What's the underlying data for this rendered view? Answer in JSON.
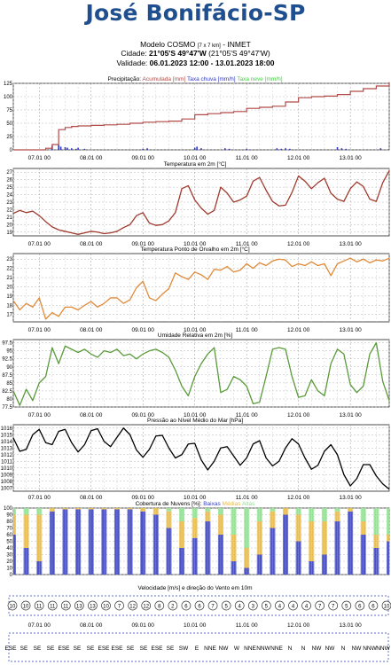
{
  "header": {
    "title": "José Bonifácio-SP",
    "model_label": "Modelo COSMO",
    "model_resolution": "[7 x 7 km]",
    "model_source": "- INMET",
    "city_label": "Cidade:",
    "city_coords": "21°05'S 49°47'W",
    "city_coords_alt": "(21°05'S 49°47'W)",
    "validity_label": "Validade:",
    "validity_range": "06.01.2023 12:00 - 13.01.2023 18:00"
  },
  "x_tick_labels": [
    "07.01 00",
    "08.01 00",
    "09.01 00",
    "10.01 00",
    "11.01 00",
    "12.01 00",
    "13.01 00"
  ],
  "colors": {
    "precip_line": "#b04a46",
    "rain_rate": "#2e37c8",
    "snow_rate": "#3fce3f",
    "temperature": "#a03a2e",
    "dewpoint": "#e08a38",
    "humidity": "#5a9a3a",
    "pressure": "#000000",
    "cloud_low": "#3840c0",
    "cloud_mid": "#e8b840",
    "cloud_high": "#8ce08c"
  },
  "chart_data": [
    {
      "type": "line",
      "title": "Precipitação:",
      "legend": [
        "Acumulada [mm]",
        "Taxa chuva [mm/h]",
        "Taxa neve [mm/h]"
      ],
      "x_hours": [
        0,
        12,
        15,
        18,
        21,
        24,
        27,
        30,
        36,
        42,
        48,
        54,
        60,
        66,
        72,
        78,
        84,
        90,
        96,
        102,
        108,
        114,
        120,
        126,
        132,
        138,
        144,
        150,
        156,
        162,
        168,
        174
      ],
      "series": [
        {
          "name": "Acumulada [mm]",
          "values": [
            0,
            0,
            3,
            10,
            38,
            42,
            44,
            45,
            46,
            47,
            48,
            50,
            52,
            53,
            54,
            58,
            66,
            68,
            70,
            72,
            78,
            80,
            82,
            90,
            98,
            100,
            101,
            104,
            110,
            115,
            120,
            127
          ]
        }
      ],
      "rain_rate_bars": [
        [
          18,
          8
        ],
        [
          21,
          9
        ],
        [
          22,
          6
        ],
        [
          24,
          5
        ],
        [
          25,
          4
        ],
        [
          27,
          3
        ],
        [
          29,
          2
        ],
        [
          30,
          4
        ],
        [
          33,
          2
        ],
        [
          60,
          2
        ],
        [
          62,
          3
        ],
        [
          84,
          4
        ],
        [
          85,
          6
        ],
        [
          87,
          3
        ],
        [
          98,
          3
        ],
        [
          100,
          2
        ],
        [
          108,
          2
        ],
        [
          122,
          3
        ],
        [
          124,
          2
        ],
        [
          126,
          3
        ],
        [
          128,
          2
        ],
        [
          150,
          5
        ],
        [
          152,
          3
        ],
        [
          154,
          2
        ],
        [
          170,
          3
        ]
      ],
      "ylim": [
        0,
        125
      ],
      "yticks": [
        0,
        25,
        50,
        75,
        100,
        125
      ]
    },
    {
      "type": "line",
      "title": "Temperatura em 2m [°C]",
      "x_hours": [
        0,
        3,
        6,
        9,
        12,
        15,
        18,
        21,
        24,
        27,
        30,
        33,
        36,
        39,
        42,
        45,
        48,
        51,
        54,
        57,
        60,
        63,
        66,
        69,
        72,
        75,
        78,
        81,
        84,
        87,
        90,
        93,
        96,
        99,
        102,
        105,
        108,
        111,
        114,
        117,
        120,
        123,
        126,
        129,
        132,
        135,
        138,
        141,
        144,
        147,
        150,
        153,
        156,
        159,
        162,
        165,
        168,
        171,
        174
      ],
      "series": [
        {
          "name": "Temperatura",
          "values": [
            21.5,
            21.9,
            21.6,
            21.8,
            21.2,
            20.4,
            19.7,
            19.3,
            19.1,
            18.9,
            18.7,
            18.9,
            19.1,
            19.0,
            18.8,
            18.9,
            19.1,
            19.6,
            20.0,
            21.2,
            21.6,
            20.2,
            19.9,
            20.0,
            20.5,
            21.6,
            24.8,
            25.2,
            23.3,
            22.2,
            21.4,
            21.9,
            25.0,
            24.2,
            23.0,
            23.3,
            23.8,
            25.8,
            26.3,
            24.6,
            23.1,
            22.5,
            22.6,
            24.3,
            26.5,
            25.8,
            24.8,
            25.6,
            26.2,
            24.2,
            23.4,
            23.1,
            24.8,
            25.7,
            25.1,
            23.4,
            23.1,
            25.6,
            27.2
          ]
        }
      ],
      "ylim": [
        18.5,
        27.5
      ],
      "yticks": [
        19,
        20,
        21,
        22,
        23,
        24,
        25,
        26,
        27
      ]
    },
    {
      "type": "line",
      "title": "Temperatura Ponto de Orvalho em 2m [°C]",
      "x_hours": [
        0,
        3,
        6,
        9,
        12,
        15,
        18,
        21,
        24,
        27,
        30,
        33,
        36,
        39,
        42,
        45,
        48,
        51,
        54,
        57,
        60,
        63,
        66,
        69,
        72,
        75,
        78,
        81,
        84,
        87,
        90,
        93,
        96,
        99,
        102,
        105,
        108,
        111,
        114,
        117,
        120,
        123,
        126,
        129,
        132,
        135,
        138,
        141,
        144,
        147,
        150,
        153,
        156,
        159,
        162,
        165,
        168,
        171,
        174
      ],
      "series": [
        {
          "name": "Ponto de Orvalho",
          "values": [
            18.5,
            17.5,
            18.2,
            17.8,
            18.8,
            16.5,
            17.2,
            16.8,
            17.8,
            17.8,
            17.5,
            18.0,
            18.4,
            17.8,
            18.2,
            18.8,
            18.8,
            18.2,
            18.6,
            19.9,
            20.6,
            18.8,
            18.5,
            19.2,
            19.8,
            21.5,
            21.1,
            20.8,
            21.6,
            21.3,
            20.8,
            21.9,
            21.8,
            22.2,
            21.6,
            21.8,
            22.5,
            22.0,
            22.6,
            22.3,
            22.8,
            23.0,
            22.9,
            22.2,
            22.5,
            22.3,
            22.7,
            22.3,
            22.5,
            21.2,
            22.5,
            22.8,
            23.1,
            22.7,
            23.0,
            22.6,
            22.9,
            22.8,
            23.1
          ]
        }
      ],
      "ylim": [
        16.2,
        23.6
      ],
      "yticks": [
        17,
        18,
        19,
        20,
        21,
        22,
        23
      ]
    },
    {
      "type": "line",
      "title": "Umidade Relativa em 2m [%]",
      "x_hours": [
        0,
        3,
        6,
        9,
        12,
        15,
        18,
        21,
        24,
        27,
        30,
        33,
        36,
        39,
        42,
        45,
        48,
        51,
        54,
        57,
        60,
        63,
        66,
        69,
        72,
        75,
        78,
        81,
        84,
        87,
        90,
        93,
        96,
        99,
        102,
        105,
        108,
        111,
        114,
        117,
        120,
        123,
        126,
        129,
        132,
        135,
        138,
        141,
        144,
        147,
        150,
        153,
        156,
        159,
        162,
        165,
        168,
        171,
        174
      ],
      "series": [
        {
          "name": "Umidade Relativa",
          "values": [
            82.5,
            78.0,
            83.0,
            79.5,
            85.0,
            87.0,
            96.0,
            91.0,
            96.5,
            95.5,
            94.5,
            95.5,
            94.0,
            93.0,
            95.0,
            94.5,
            95.5,
            93.5,
            94.0,
            92.5,
            94.0,
            95.0,
            95.5,
            94.5,
            93.0,
            89.0,
            84.0,
            81.0,
            87.0,
            91.0,
            94.0,
            96.0,
            82.0,
            83.0,
            87.0,
            86.0,
            84.0,
            78.5,
            79.0,
            87.0,
            95.5,
            96.0,
            95.5,
            87.0,
            80.5,
            81.0,
            86.0,
            82.5,
            81.0,
            91.0,
            95.5,
            94.0,
            84.5,
            82.0,
            84.0,
            94.0,
            97.5,
            85.5,
            79.5
          ]
        }
      ],
      "ylim": [
        77.5,
        98.5
      ],
      "yticks": [
        77.5,
        80.0,
        82.5,
        85.0,
        87.5,
        90.0,
        92.5,
        95.0,
        97.5
      ]
    },
    {
      "type": "line",
      "title": "Pressão ao Nível Médio do Mar [hPa]",
      "x_hours": [
        0,
        3,
        6,
        9,
        12,
        15,
        18,
        21,
        24,
        27,
        30,
        33,
        36,
        39,
        42,
        45,
        48,
        51,
        54,
        57,
        60,
        63,
        66,
        69,
        72,
        75,
        78,
        81,
        84,
        87,
        90,
        93,
        96,
        99,
        102,
        105,
        108,
        111,
        114,
        117,
        120,
        123,
        126,
        129,
        132,
        135,
        138,
        141,
        144,
        147,
        150,
        153,
        156,
        159,
        162,
        165,
        168,
        171,
        174
      ],
      "series": [
        {
          "name": "Pressão",
          "values": [
            1014.5,
            1012.5,
            1012.8,
            1015.0,
            1015.8,
            1013.8,
            1013.5,
            1015.5,
            1015.8,
            1013.8,
            1012.4,
            1013.5,
            1015.6,
            1015.9,
            1014.0,
            1013.2,
            1014.6,
            1016.0,
            1015.0,
            1012.7,
            1011.6,
            1012.8,
            1014.8,
            1014.9,
            1013.0,
            1011.5,
            1012.0,
            1013.6,
            1013.7,
            1011.2,
            1009.7,
            1011.0,
            1013.0,
            1013.2,
            1011.8,
            1010.4,
            1011.5,
            1013.6,
            1014.1,
            1011.5,
            1010.3,
            1011.0,
            1013.0,
            1014.4,
            1013.6,
            1011.5,
            1009.8,
            1010.4,
            1012.5,
            1013.5,
            1012.0,
            1009.0,
            1007.3,
            1008.4,
            1010.5,
            1010.5,
            1008.8,
            1007.6,
            1006.8
          ]
        }
      ],
      "ylim": [
        1006.5,
        1016.5
      ],
      "yticks": [
        1007,
        1008,
        1009,
        1010,
        1011,
        1012,
        1013,
        1014,
        1015,
        1016
      ]
    },
    {
      "type": "bar",
      "title": "Cobertura de Nuvens [%]:",
      "legend": [
        "Baixas",
        "Médias",
        "Altas"
      ],
      "x_hours": [
        0,
        6,
        12,
        18,
        24,
        30,
        36,
        42,
        48,
        54,
        60,
        66,
        72,
        78,
        84,
        90,
        96,
        102,
        108,
        114,
        120,
        126,
        132,
        138,
        144,
        150,
        156,
        162,
        168,
        174
      ],
      "series": [
        {
          "name": "Baixas",
          "values": [
            60,
            40,
            20,
            95,
            98,
            98,
            98,
            98,
            98,
            98,
            95,
            90,
            70,
            40,
            55,
            80,
            60,
            20,
            10,
            30,
            70,
            90,
            50,
            20,
            30,
            80,
            95,
            60,
            40,
            50
          ]
        },
        {
          "name": "Médias",
          "values": [
            30,
            50,
            70,
            5,
            2,
            2,
            2,
            2,
            2,
            2,
            5,
            10,
            25,
            40,
            30,
            15,
            30,
            40,
            30,
            50,
            25,
            10,
            40,
            60,
            50,
            15,
            5,
            20,
            20,
            10
          ]
        },
        {
          "name": "Altas",
          "values": [
            10,
            10,
            10,
            0,
            0,
            0,
            0,
            0,
            0,
            0,
            0,
            0,
            5,
            20,
            15,
            5,
            10,
            40,
            60,
            20,
            5,
            0,
            10,
            20,
            20,
            5,
            0,
            20,
            40,
            40
          ]
        }
      ],
      "ylim": [
        0,
        100
      ],
      "yticks": [
        0,
        10,
        20,
        30,
        40,
        50,
        60,
        70,
        80,
        90,
        100
      ]
    },
    {
      "type": "table",
      "title": "Velocidade [m/s] e direção do Vento em 10m",
      "wind_speeds": [
        "10",
        "10",
        "11",
        "11",
        "11",
        "13",
        "13",
        "10",
        "7",
        "12",
        "12",
        "8",
        "2",
        "6",
        "6",
        "7",
        "5",
        "4",
        "3",
        "5",
        "4",
        "4",
        "4",
        "7",
        "7",
        "5",
        "6",
        "6",
        "10"
      ],
      "wind_directions": [
        "ESE",
        "SE",
        "SE",
        "SE",
        "ESE",
        "SE",
        "SE",
        "ESE",
        "ESE",
        "SE",
        "SE",
        "ESE",
        "SE",
        "SW",
        "E",
        "NNE",
        "NW",
        "W",
        "NNE",
        "NNW",
        "NNE",
        "N",
        "N",
        "NW",
        "NW",
        "N",
        "NW",
        "NNW",
        "NNW"
      ]
    }
  ]
}
